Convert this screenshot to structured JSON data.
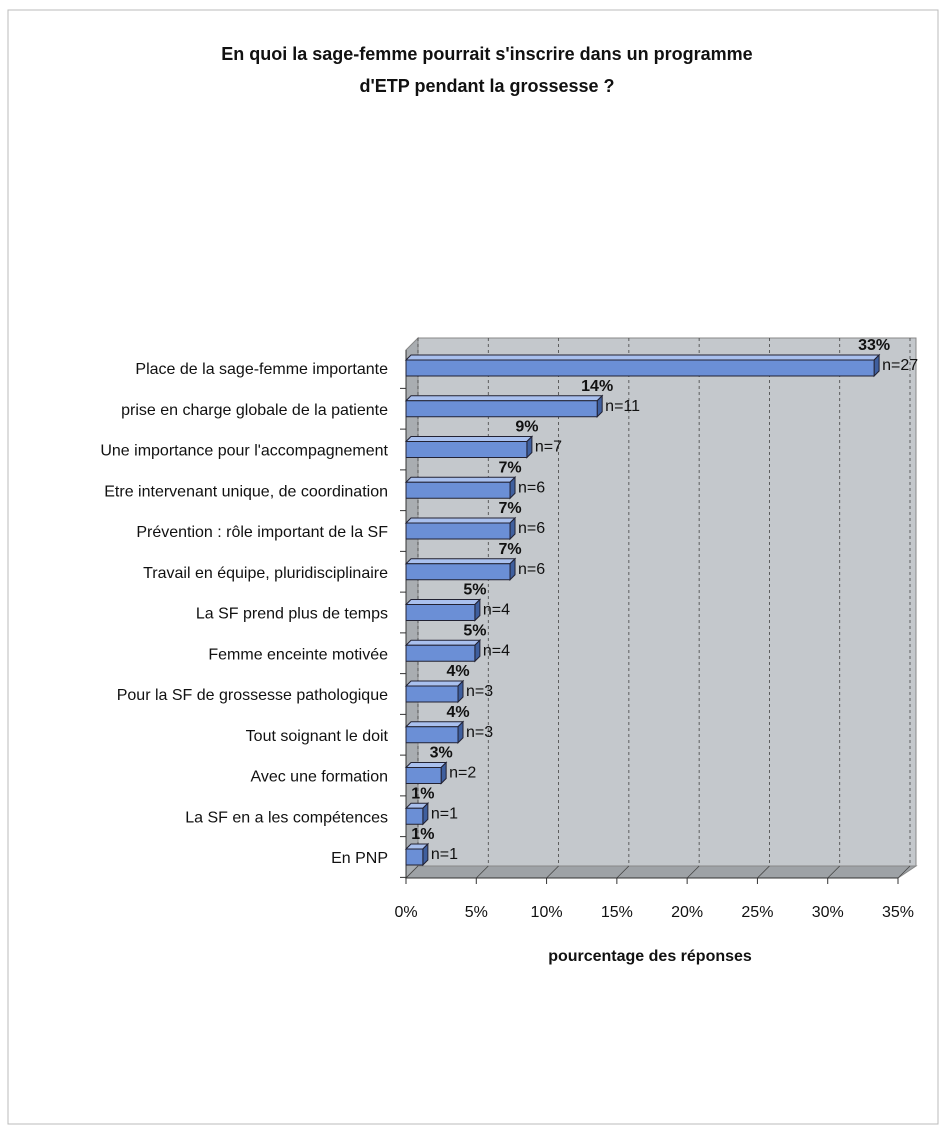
{
  "chart_data": {
    "type": "bar3d_horizontal",
    "title": [
      "En quoi la sage-femme pourrait s'inscrire dans un programme",
      "d'ETP pendant la grossesse ?"
    ],
    "xlabel": "pourcentage des réponses",
    "categories": [
      "Place de la sage-femme importante",
      "prise en charge globale de la patiente",
      "Une importance pour l'accompagnement",
      "Etre intervenant unique, de coordination",
      "Prévention : rôle important de la SF",
      "Travail en équipe, pluridisciplinaire",
      "La SF prend plus de temps",
      "Femme enceinte motivée",
      "Pour la SF de grossesse pathologique",
      "Tout soignant le doit",
      "Avec une formation",
      "La SF en a les compétences",
      "En PNP"
    ],
    "values": [
      33.3,
      13.6,
      8.6,
      7.4,
      7.4,
      7.4,
      4.9,
      4.9,
      3.7,
      3.7,
      2.5,
      1.2,
      1.2
    ],
    "value_labels": [
      "33%",
      "14%",
      "9%",
      "7%",
      "7%",
      "7%",
      "5%",
      "5%",
      "4%",
      "4%",
      "3%",
      "1%",
      "1%"
    ],
    "n_labels": [
      "n=27",
      "n=11",
      "n=7",
      "n=6",
      "n=6",
      "n=6",
      "n=4",
      "n=4",
      "n=3",
      "n=3",
      "n=2",
      "n=1",
      "n=1"
    ],
    "color": "#6b8fd6",
    "xlim": [
      0,
      35
    ],
    "xticks": [
      {
        "value": 0,
        "label": "0%"
      },
      {
        "value": 5,
        "label": "5%"
      },
      {
        "value": 10,
        "label": "10%"
      },
      {
        "value": 15,
        "label": "15%"
      },
      {
        "value": 20,
        "label": "20%"
      },
      {
        "value": 25,
        "label": "25%"
      },
      {
        "value": 30,
        "label": "30%"
      },
      {
        "value": 35,
        "label": "35%"
      }
    ],
    "grid": true
  }
}
